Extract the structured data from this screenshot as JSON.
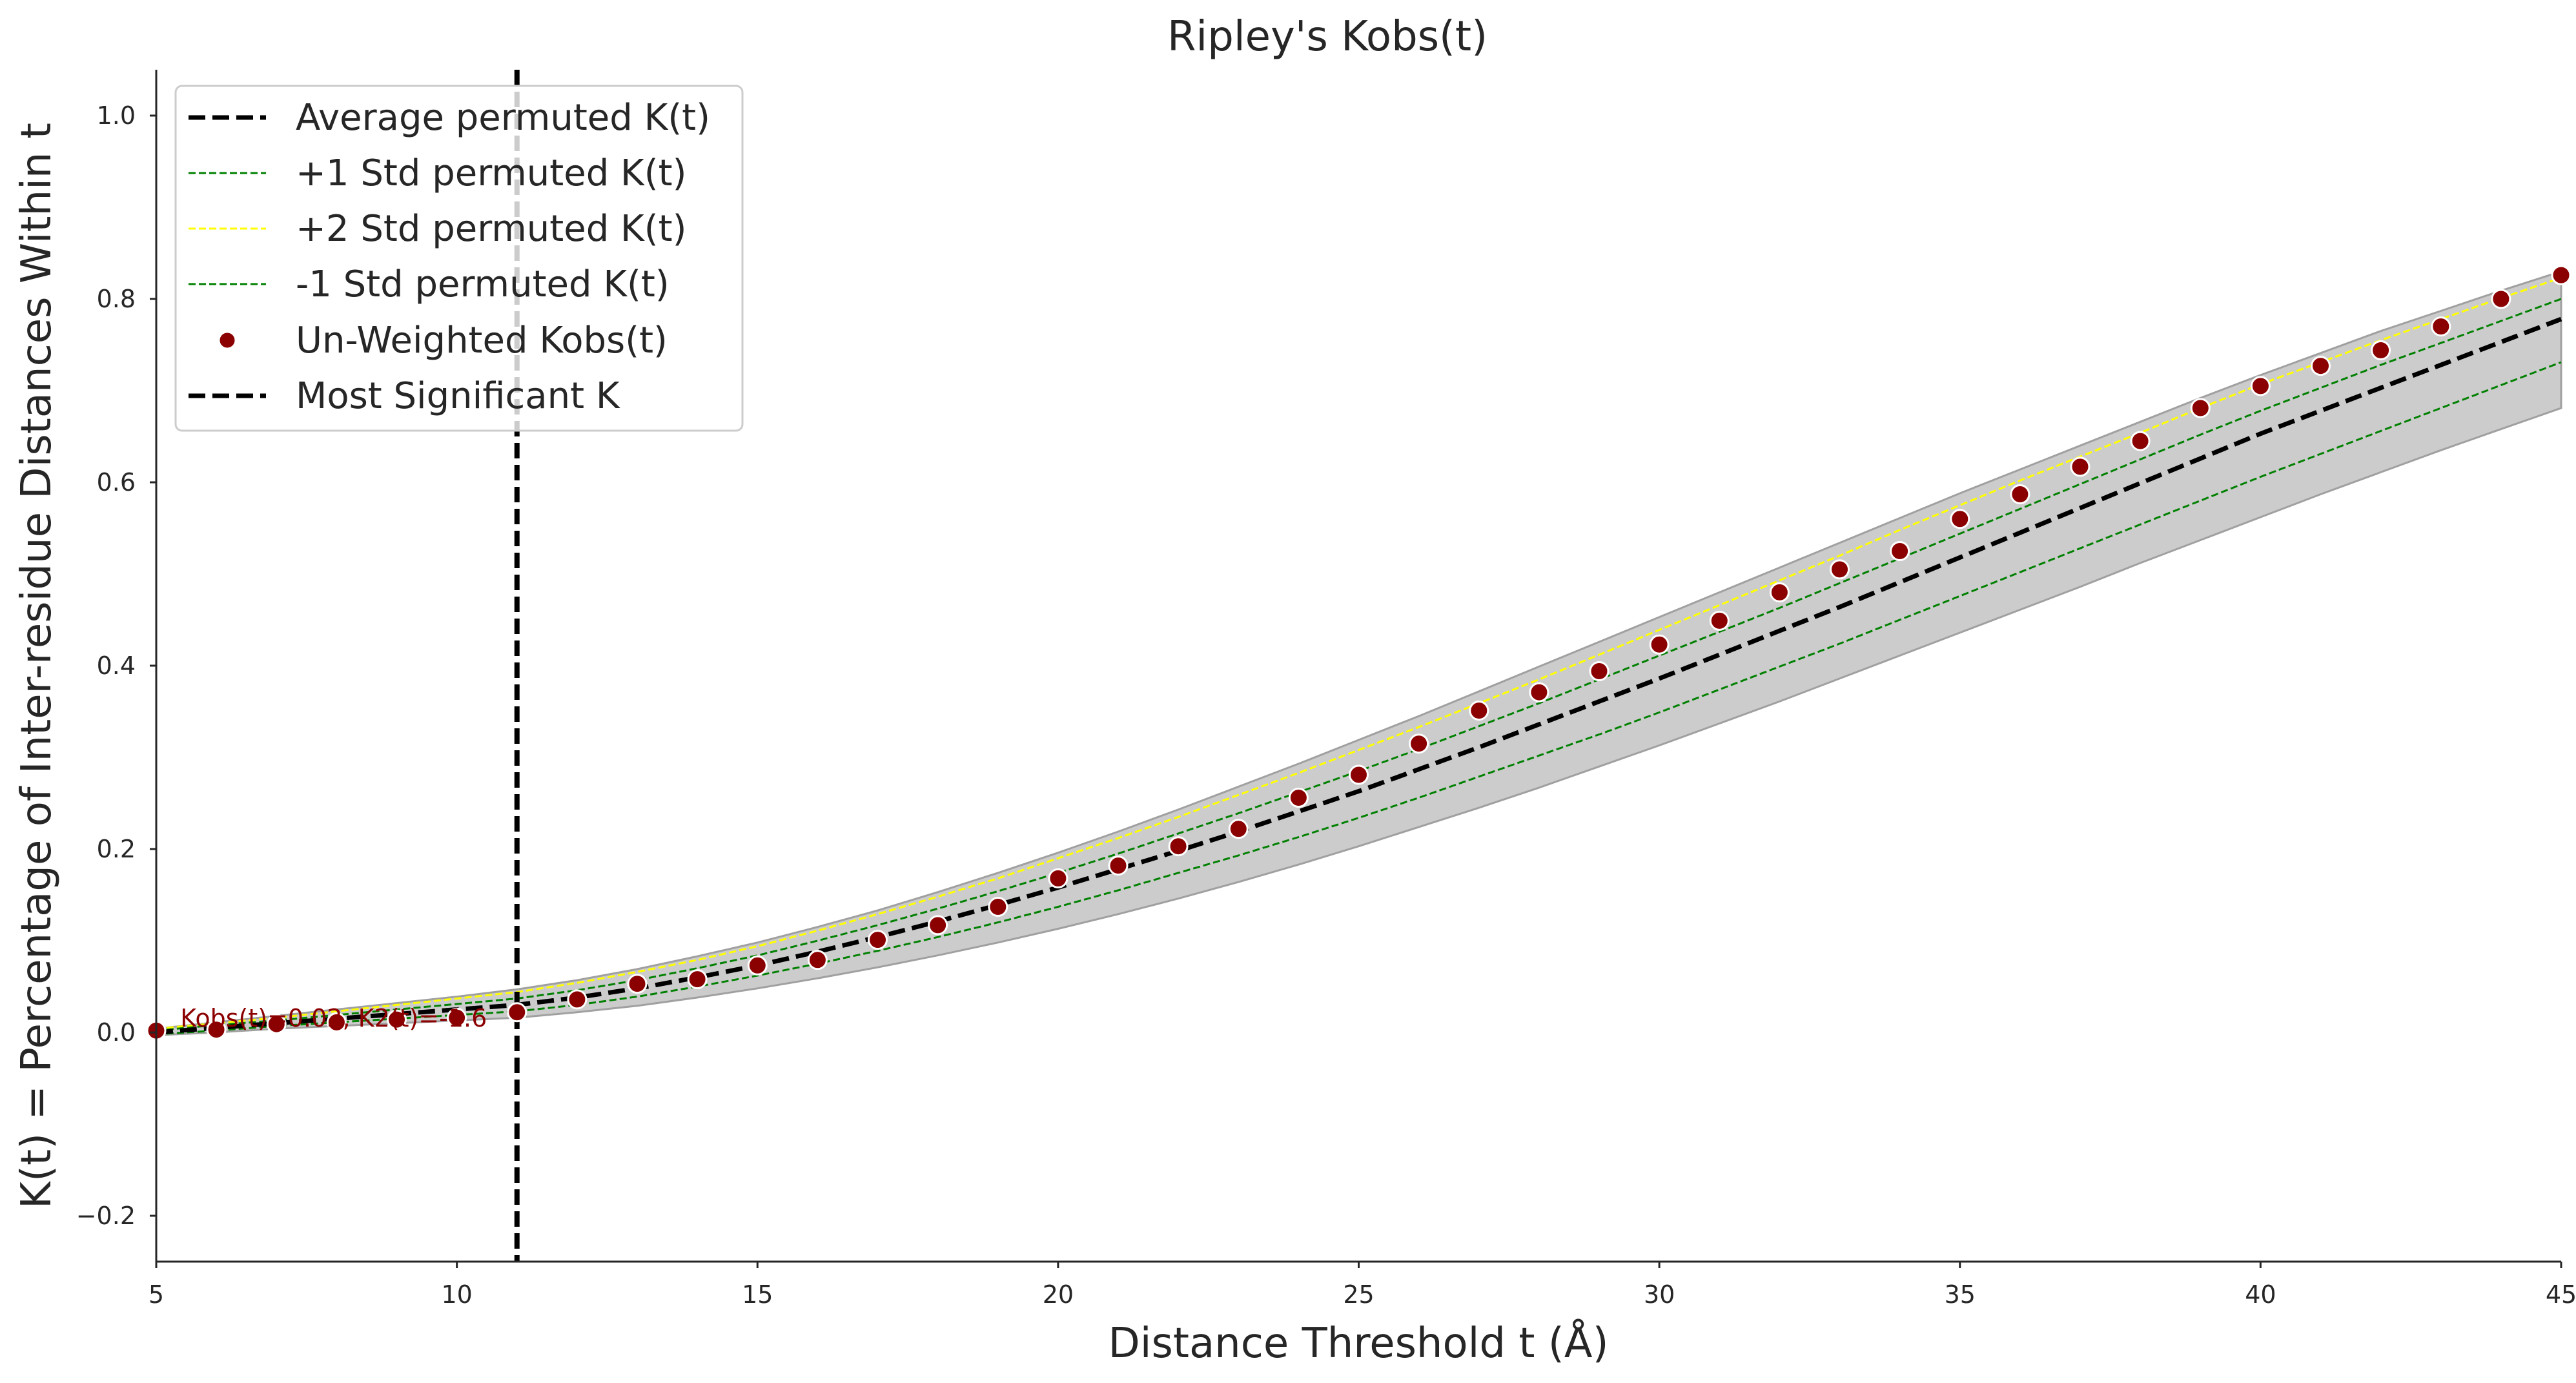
{
  "chart_data": {
    "type": "line",
    "title": "Ripley's Kobs(t)",
    "xlabel": "Distance Threshold t (Å)",
    "ylabel": "K(t) = Percentage of Inter-residue Distances Within t",
    "xlim": [
      5,
      45
    ],
    "ylim": [
      -0.25,
      1.05
    ],
    "xticks": [
      "5",
      "10",
      "15",
      "20",
      "25",
      "30",
      "35",
      "40",
      "45"
    ],
    "yticks": [
      "−0.2",
      "0.0",
      "0.2",
      "0.4",
      "0.6",
      "0.8",
      "1.0"
    ],
    "grid": false,
    "legend_position": "top-left",
    "x": [
      5,
      6,
      7,
      8,
      9,
      10,
      11,
      12,
      13,
      14,
      15,
      16,
      17,
      18,
      19,
      20,
      21,
      22,
      23,
      24,
      25,
      26,
      27,
      28,
      29,
      30,
      31,
      32,
      33,
      34,
      35,
      36,
      37,
      38,
      39,
      40,
      41,
      42,
      43,
      44,
      45
    ],
    "series": [
      {
        "name": "Average permuted K(t)",
        "style": "dashed",
        "color": "#000000",
        "values": [
          0.0,
          0.005,
          0.01,
          0.015,
          0.02,
          0.025,
          0.03,
          0.038,
          0.048,
          0.06,
          0.073,
          0.088,
          0.104,
          0.121,
          0.139,
          0.158,
          0.178,
          0.198,
          0.219,
          0.241,
          0.263,
          0.287,
          0.311,
          0.336,
          0.361,
          0.386,
          0.412,
          0.438,
          0.464,
          0.491,
          0.518,
          0.545,
          0.572,
          0.599,
          0.626,
          0.653,
          0.678,
          0.703,
          0.728,
          0.753,
          0.778
        ]
      },
      {
        "name": "+1 Std permuted K(t)",
        "style": "dashed",
        "color": "#008000",
        "values": [
          0.002,
          0.008,
          0.013,
          0.019,
          0.025,
          0.031,
          0.037,
          0.046,
          0.057,
          0.07,
          0.084,
          0.1,
          0.117,
          0.135,
          0.154,
          0.174,
          0.195,
          0.217,
          0.239,
          0.262,
          0.285,
          0.309,
          0.334,
          0.359,
          0.385,
          0.411,
          0.437,
          0.463,
          0.49,
          0.517,
          0.544,
          0.571,
          0.598,
          0.625,
          0.652,
          0.678,
          0.703,
          0.728,
          0.752,
          0.776,
          0.8
        ]
      },
      {
        "name": "+2 Std permuted K(t)",
        "style": "dashed",
        "color": "#ffff00",
        "values": [
          0.004,
          0.01,
          0.016,
          0.023,
          0.03,
          0.037,
          0.044,
          0.054,
          0.066,
          0.079,
          0.094,
          0.111,
          0.129,
          0.148,
          0.168,
          0.19,
          0.212,
          0.235,
          0.259,
          0.283,
          0.308,
          0.333,
          0.359,
          0.385,
          0.412,
          0.439,
          0.466,
          0.493,
          0.52,
          0.548,
          0.575,
          0.602,
          0.628,
          0.654,
          0.681,
          0.707,
          0.731,
          0.755,
          0.778,
          0.801,
          0.823
        ]
      },
      {
        "name": "-1 Std permuted K(t)",
        "style": "dashed",
        "color": "#008000",
        "values": [
          -0.002,
          0.002,
          0.007,
          0.011,
          0.015,
          0.019,
          0.023,
          0.03,
          0.039,
          0.05,
          0.062,
          0.075,
          0.089,
          0.104,
          0.12,
          0.137,
          0.155,
          0.174,
          0.193,
          0.213,
          0.234,
          0.256,
          0.279,
          0.302,
          0.325,
          0.349,
          0.374,
          0.399,
          0.424,
          0.45,
          0.476,
          0.502,
          0.528,
          0.554,
          0.58,
          0.606,
          0.631,
          0.656,
          0.681,
          0.706,
          0.731
        ]
      },
      {
        "name": "Un-Weighted Kobs(t)",
        "style": "markers",
        "color": "#8b0000",
        "values": [
          0.002,
          0.003,
          0.009,
          0.011,
          0.014,
          0.016,
          0.022,
          0.036,
          0.053,
          0.058,
          0.073,
          0.079,
          0.101,
          0.117,
          0.137,
          0.168,
          0.182,
          0.203,
          0.222,
          0.256,
          0.281,
          0.315,
          0.351,
          0.371,
          0.394,
          0.423,
          0.449,
          0.48,
          0.505,
          0.525,
          0.56,
          0.587,
          0.617,
          0.645,
          0.681,
          0.705,
          0.727,
          0.744,
          0.77,
          0.8,
          0.826
        ]
      }
    ],
    "band": {
      "upper": [
        0.004,
        0.011,
        0.018,
        0.025,
        0.032,
        0.039,
        0.047,
        0.057,
        0.069,
        0.083,
        0.098,
        0.115,
        0.133,
        0.153,
        0.174,
        0.196,
        0.219,
        0.243,
        0.268,
        0.293,
        0.319,
        0.345,
        0.372,
        0.399,
        0.426,
        0.453,
        0.48,
        0.507,
        0.534,
        0.561,
        0.588,
        0.614,
        0.64,
        0.666,
        0.692,
        0.717,
        0.741,
        0.765,
        0.787,
        0.809,
        0.83
      ],
      "lower": [
        -0.003,
        0.0,
        0.004,
        0.007,
        0.01,
        0.013,
        0.016,
        0.022,
        0.029,
        0.038,
        0.048,
        0.059,
        0.071,
        0.084,
        0.098,
        0.113,
        0.129,
        0.146,
        0.164,
        0.183,
        0.203,
        0.224,
        0.245,
        0.267,
        0.29,
        0.313,
        0.337,
        0.361,
        0.386,
        0.411,
        0.436,
        0.461,
        0.486,
        0.512,
        0.537,
        0.562,
        0.587,
        0.611,
        0.635,
        0.658,
        0.681
      ],
      "color": "#cccccc",
      "edge_color": "#a0a0a0"
    },
    "vline": {
      "name": "Most Significant K",
      "x": 11,
      "style": "dashed",
      "color": "#000000"
    },
    "annotation": {
      "text": "Kobs(t)=0.02, K2(t)=-1.6",
      "x": 5.4,
      "y": 0.002,
      "color": "#8b0000"
    }
  }
}
